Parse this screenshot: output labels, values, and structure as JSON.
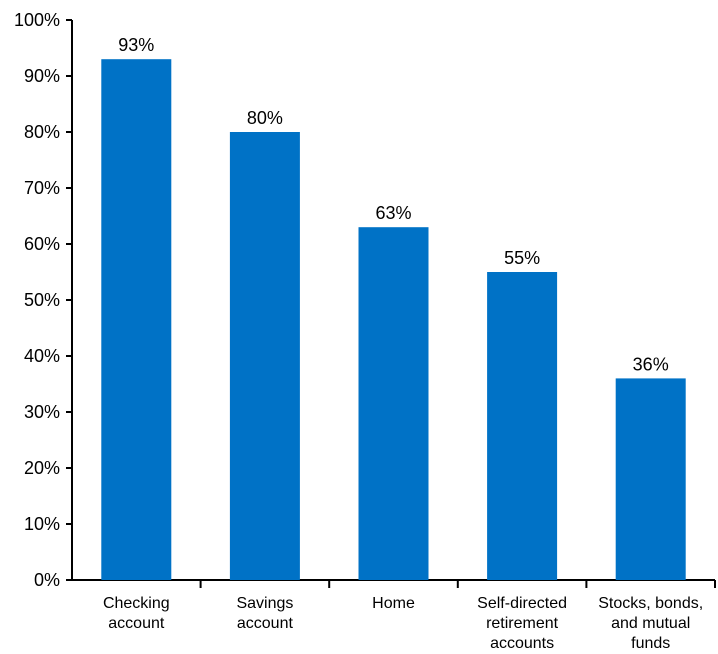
{
  "chart_data": {
    "type": "bar",
    "title": "",
    "xlabel": "",
    "ylabel": "",
    "categories": [
      [
        "Checking",
        "account"
      ],
      [
        "Savings",
        "account"
      ],
      [
        "Home"
      ],
      [
        "Self-directed",
        "retirement",
        "accounts"
      ],
      [
        "Stocks, bonds,",
        "and mutual",
        "funds"
      ]
    ],
    "values": [
      93,
      80,
      63,
      55,
      36
    ],
    "value_labels": [
      "93%",
      "80%",
      "63%",
      "55%",
      "36%"
    ],
    "ylim": [
      0,
      100
    ],
    "yticks": [
      0,
      10,
      20,
      30,
      40,
      50,
      60,
      70,
      80,
      90,
      100
    ],
    "ytick_labels": [
      "0%",
      "10%",
      "20%",
      "30%",
      "40%",
      "50%",
      "60%",
      "70%",
      "80%",
      "90%",
      "100%"
    ],
    "grid": false,
    "legend": "none",
    "colors": {
      "bar": "#0072c6",
      "axis": "#000000",
      "text": "#000000"
    }
  }
}
